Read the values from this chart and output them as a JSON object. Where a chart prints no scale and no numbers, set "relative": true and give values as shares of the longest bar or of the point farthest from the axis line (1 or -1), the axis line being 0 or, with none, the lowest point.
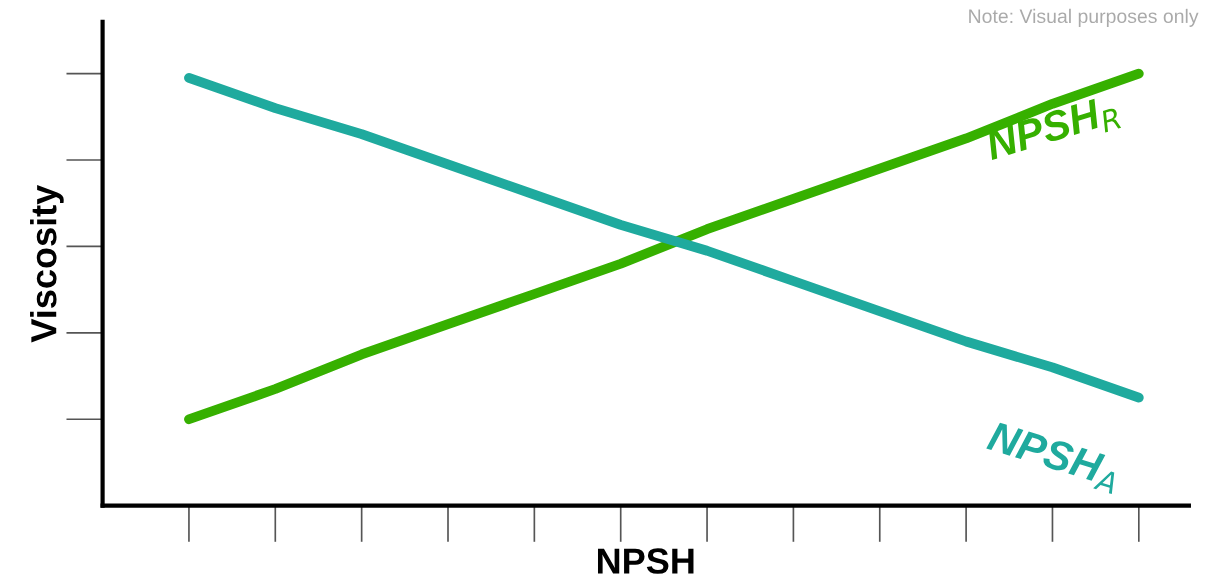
{
  "chart_data": {
    "type": "line",
    "relative": true,
    "xlabel": "NPSH",
    "ylabel": "Viscosity",
    "categories": [
      null,
      null,
      null,
      null,
      null,
      null,
      null,
      null,
      null,
      null,
      null,
      null
    ],
    "series": [
      {
        "name": "NPSH$_{R}$",
        "color": "#36b000",
        "values": [
          0.2,
          0.27,
          0.35,
          0.42,
          0.49,
          0.56,
          0.64,
          0.71,
          0.78,
          0.85,
          0.93,
          1.0
        ]
      },
      {
        "name": "NPSH$_{A}$",
        "color": "#1faa9e",
        "values": [
          0.99,
          0.92,
          0.86,
          0.79,
          0.72,
          0.65,
          0.59,
          0.52,
          0.45,
          0.38,
          0.32,
          0.25
        ]
      }
    ],
    "annotations": [
      "Note: Visual purposes only"
    ],
    "grid": false,
    "legend": false,
    "marker": "none",
    "line_style": "solid",
    "tick_labels": false
  }
}
